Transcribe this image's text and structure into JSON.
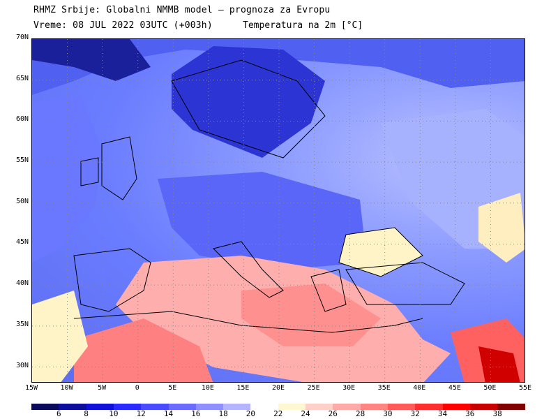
{
  "header": {
    "line1": "RHMZ Srbije: Globalni NMMB model — prognoza za Evropu",
    "line2": "Vreme: 08 JUL 2022 03UTC (+003h)",
    "field": "Temperatura na 2m [°C]"
  },
  "map": {
    "lon_range": [
      -15,
      55
    ],
    "lat_range": [
      28,
      70
    ],
    "lat_labels": [
      "70N",
      "65N",
      "60N",
      "55N",
      "50N",
      "45N",
      "40N",
      "35N",
      "30N"
    ],
    "lon_labels": [
      "15W",
      "10W",
      "5W",
      "0",
      "5E",
      "10E",
      "15E",
      "20E",
      "25E",
      "30E",
      "35E",
      "40E",
      "45E",
      "50E",
      "55E"
    ],
    "gridlines": "dotted every 5 degrees"
  },
  "colorbar": {
    "labels": [
      "6",
      "8",
      "10",
      "12",
      "14",
      "16",
      "18",
      "20",
      "22",
      "24",
      "26",
      "28",
      "30",
      "32",
      "34",
      "36",
      "38"
    ],
    "colors": [
      "#0a0a5a",
      "#0d0d9c",
      "#1010d8",
      "#2a2aff",
      "#4a4aff",
      "#6b6bff",
      "#8f8fff",
      "#b5b5ff",
      "#ffffff",
      "#fff7d0",
      "#ffd0c8",
      "#ffaaa8",
      "#ff8482",
      "#ff5a5a",
      "#ff2d2d",
      "#ff0000",
      "#c80000",
      "#800000"
    ]
  }
}
